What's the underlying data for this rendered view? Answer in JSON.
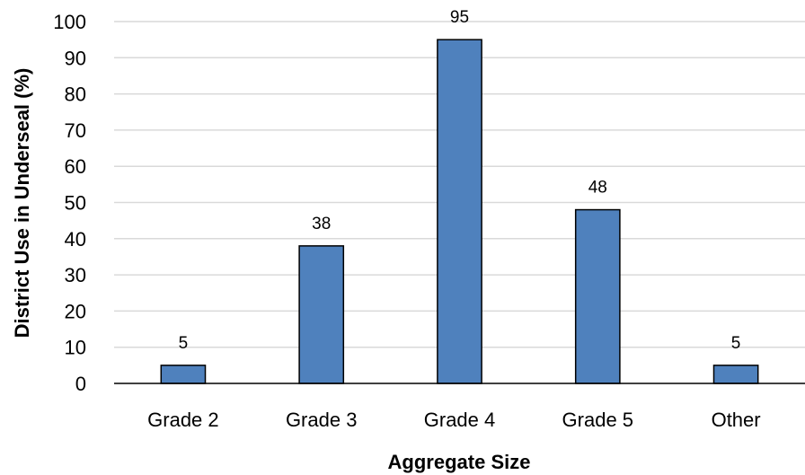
{
  "chart_data": {
    "type": "bar",
    "title": "",
    "xlabel": "Aggregate Size",
    "ylabel": "District Use in Underseal (%)",
    "categories": [
      "Grade 2",
      "Grade 3",
      "Grade 4",
      "Grade 5",
      "Other"
    ],
    "values": [
      5,
      38,
      95,
      48,
      5
    ],
    "data_labels": [
      "5",
      "38",
      "95",
      "48",
      "5"
    ],
    "ylim": [
      0,
      100
    ],
    "yticks": [
      0,
      10,
      20,
      30,
      40,
      50,
      60,
      70,
      80,
      90,
      100
    ],
    "grid": true,
    "legend": "none",
    "bar_color": "#4F81BD",
    "bar_edge_color": "#000000"
  }
}
